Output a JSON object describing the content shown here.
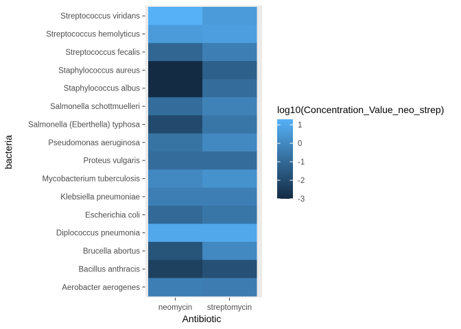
{
  "chart_data": {
    "type": "heatmap",
    "xlabel": "Antibiotic",
    "ylabel": "bacteria",
    "x": [
      "neomycin",
      "streptomycin"
    ],
    "y": [
      "Streptococcus viridans",
      "Streptococcus hemolyticus",
      "Streptococcus fecalis",
      "Staphylococcus aureus",
      "Staphylococcus albus",
      "Salmonella schottmuelleri",
      "Salmonella (Eberthella) typhosa",
      "Pseudomonas aeruginosa",
      "Proteus vulgaris",
      "Mycobacterium tuberculosis",
      "Klebsiella pneumoniae",
      "Escherichia coli",
      "Diplococcus pneumonia",
      "Brucella abortus",
      "Bacillus anthracis",
      "Aerobacter aerogenes"
    ],
    "values": [
      [
        1.3,
        0.6
      ],
      [
        0.6,
        0.7
      ],
      [
        -1.1,
        -0.3
      ],
      [
        -3.0,
        -1.3
      ],
      [
        -3.0,
        -0.9
      ],
      [
        -0.9,
        -0.2
      ],
      [
        -2.0,
        -0.6
      ],
      [
        -0.7,
        0.0
      ],
      [
        -0.9,
        -0.9
      ],
      [
        0.0,
        0.3
      ],
      [
        -0.3,
        -0.3
      ],
      [
        -1.0,
        -0.6
      ],
      [
        1.0,
        1.0
      ],
      [
        -1.7,
        0.0
      ],
      [
        -2.3,
        -1.8
      ],
      [
        -0.3,
        -0.4
      ]
    ],
    "legend": {
      "title": "log10(Concentration_Value_neo_strep)",
      "breaks": [
        "1",
        "0",
        "-1",
        "-2",
        "-3"
      ],
      "position": "right"
    },
    "color_scale": {
      "low": "#132b43",
      "high": "#56b1f7",
      "min": -3,
      "max": 1.3
    },
    "panel_background": "#ebebeb"
  }
}
